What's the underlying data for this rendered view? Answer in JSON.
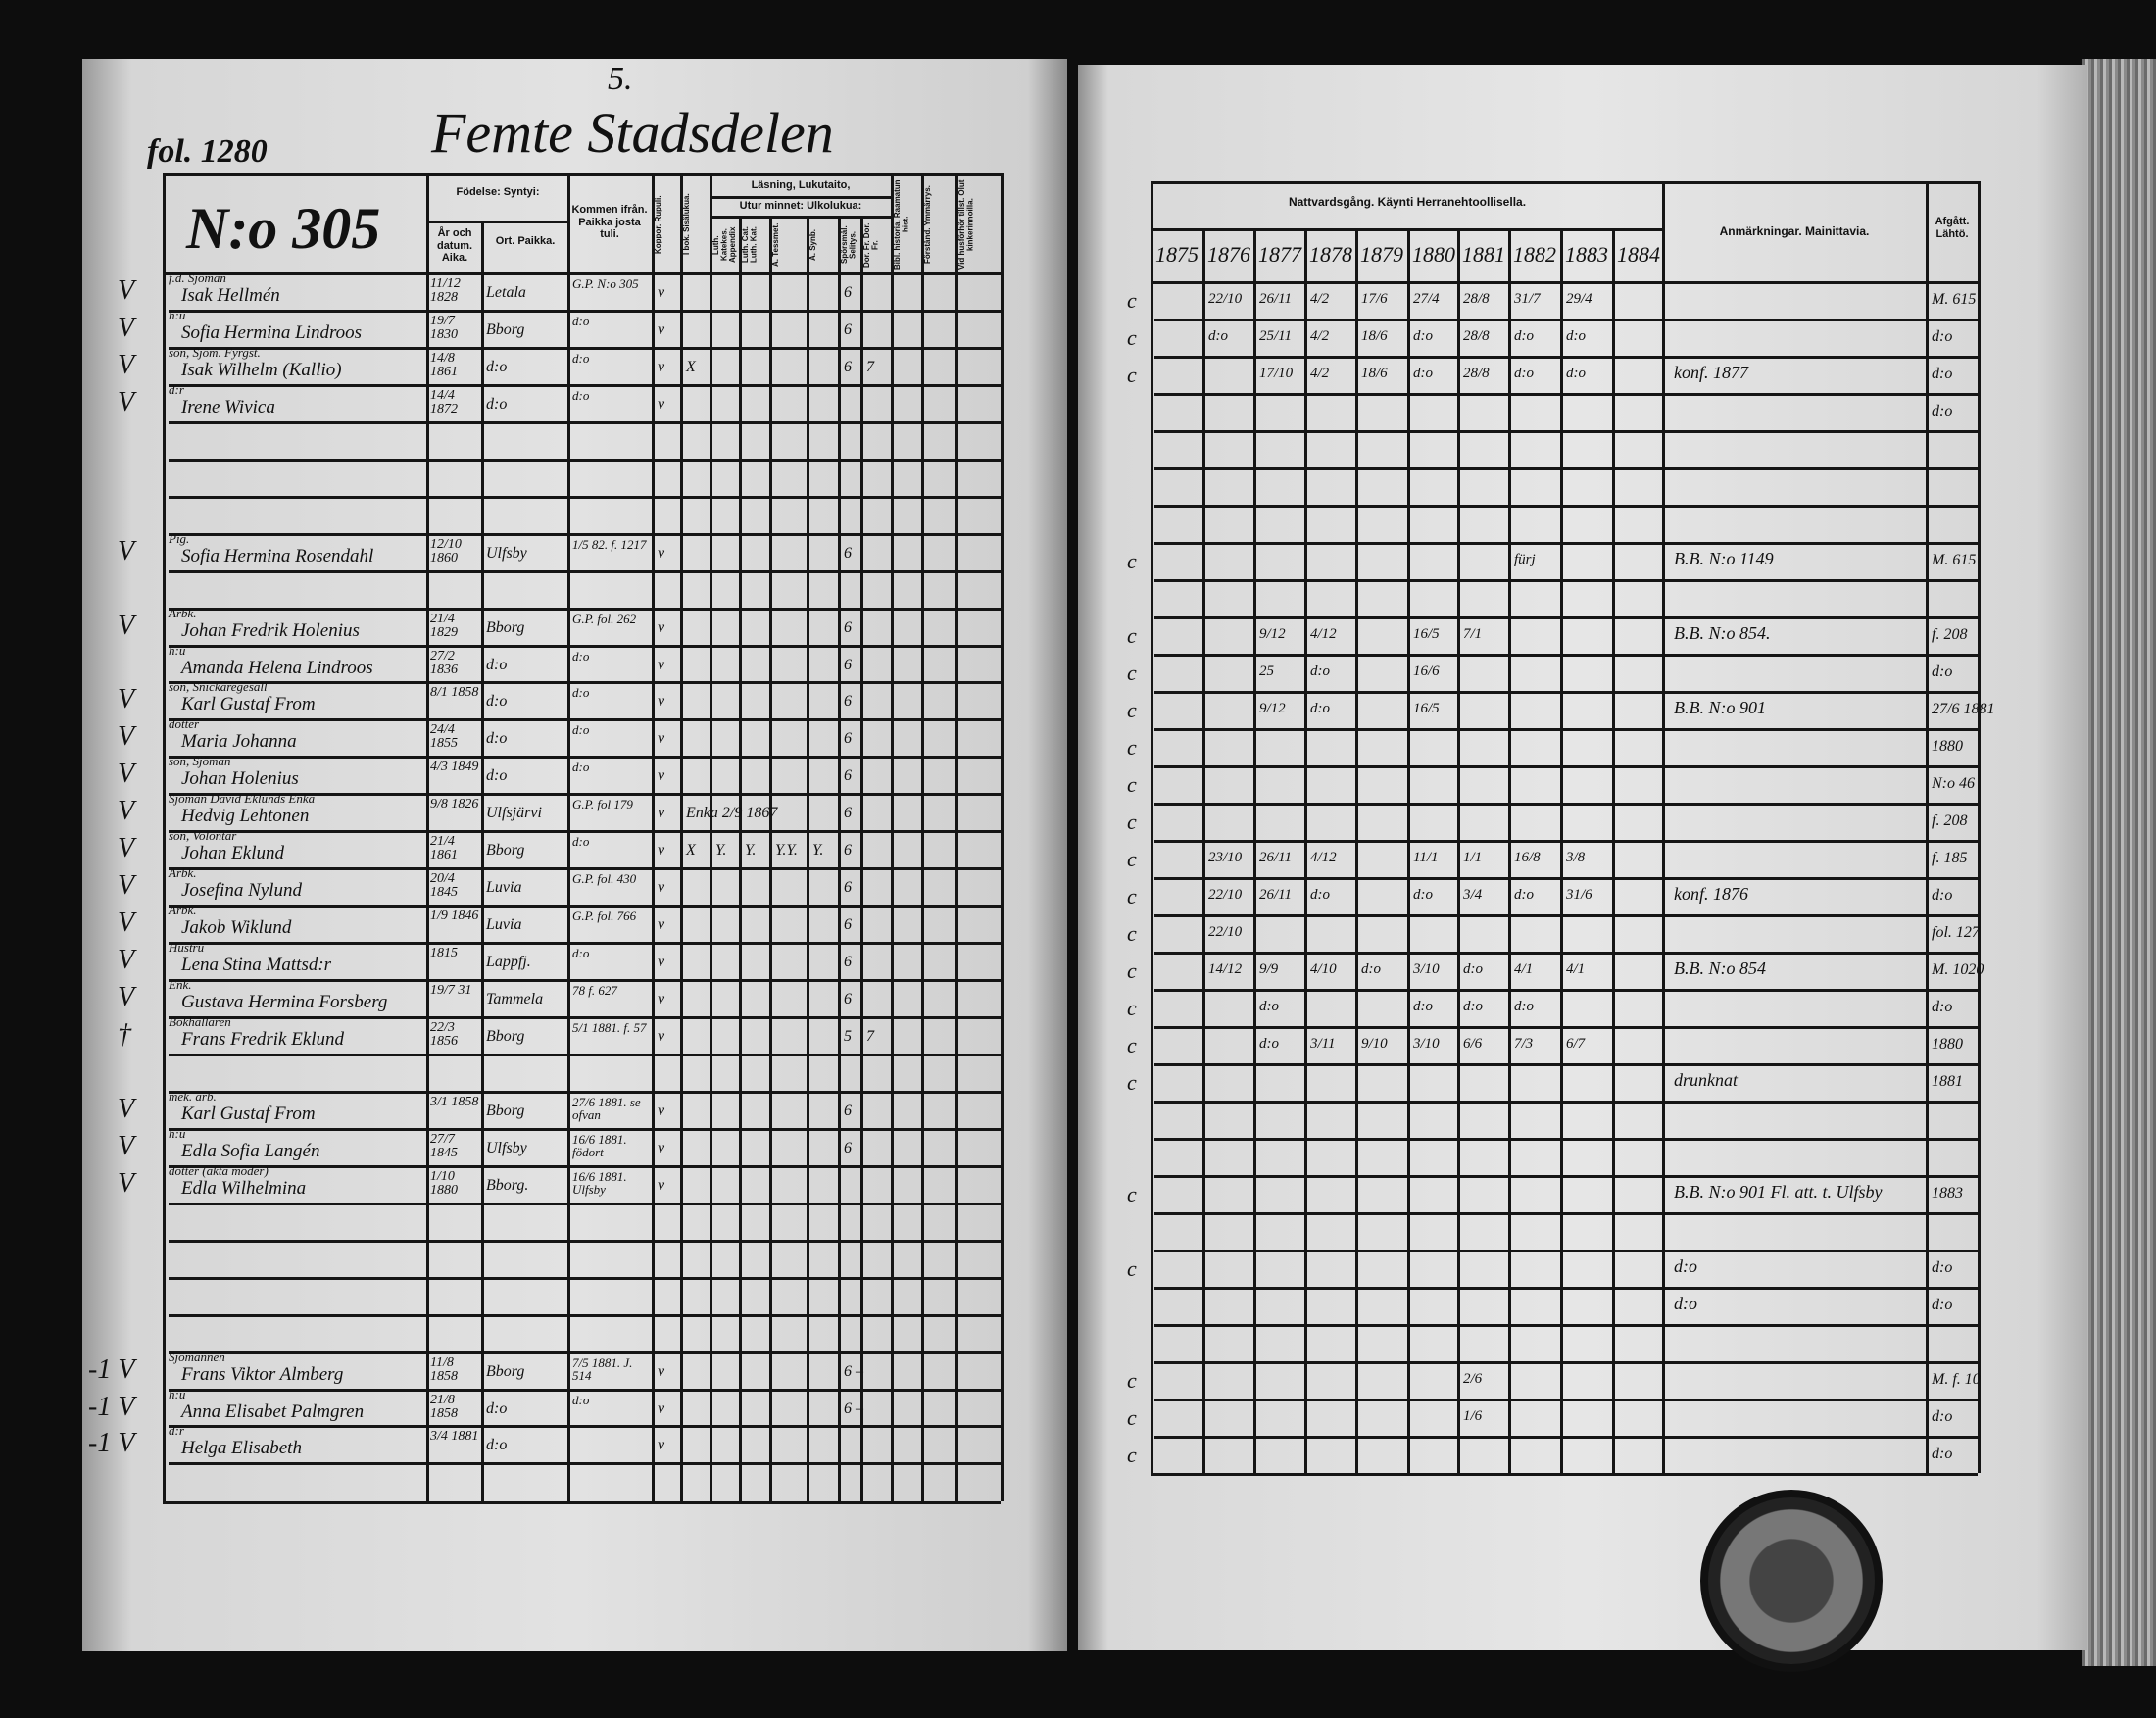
{
  "colors": {
    "ink": "#111111",
    "paper": "#e2e2e2",
    "background": "#0d0d0d"
  },
  "header": {
    "folio": "fol. 1280",
    "district": "Femte Stadsdelen",
    "district_number": "5.",
    "household_number": "N:o 305"
  },
  "left_columns": {
    "born": "Födelse: Syntyi:",
    "year_date": "År och datum. Aika.",
    "place": "Ort. Paikka.",
    "came_from": "Kommen ifrån. Paikka josta tuli.",
    "smallpox": "Koppor. Rupuli.",
    "reading": "Läsning, Lukutaito,",
    "from_book": "I bok. Sisälukua.",
    "by_heart": "Utur minnet: Ulkolukua:",
    "sub": [
      "Koppor. Rupuli.",
      "I bok. Sisälukua.",
      "Luth. Katekes. Appendix",
      "Luth. Cat. Luth. Kat.",
      "A. Tessmet.",
      "A. Synb.",
      "Spörsmål. Selitys.",
      "Dor. Fr. Dor. Fr.",
      "Bibl. historia. Raamatun hist.",
      "Förstånd. Ymmärrys.",
      "Vid husförhör tillst. Olut kinkerinnoilla."
    ]
  },
  "right_columns": {
    "communion": "Nattvardsgång. Käynti Herranehtoollisella.",
    "years": [
      "1875",
      "1876",
      "1877",
      "1878",
      "1879",
      "1880",
      "1881",
      "1882",
      "1883",
      "1884"
    ],
    "remarks": "Anmärkningar. Mainittavia.",
    "departed": "Afgått. Lähtö."
  },
  "persons": [
    {
      "row": 0,
      "mark": "V",
      "occupation": "f.d. Sjöman",
      "name": "Isak Hellmén",
      "date": "11/12 1828",
      "place": "Letala",
      "from": "G.P. N:o 305",
      "marks": [
        "v",
        "",
        "",
        "",
        "",
        "",
        "6"
      ]
    },
    {
      "row": 1,
      "mark": "V",
      "occupation": "h:u",
      "name": "Sofia Hermina Lindroos",
      "date": "19/7 1830",
      "place": "Bborg",
      "from": "d:o",
      "marks": [
        "v",
        "",
        "",
        "",
        "",
        "",
        "6"
      ]
    },
    {
      "row": 2,
      "mark": "V",
      "occupation": "son, Sjöm. Fyrgst.",
      "name": "Isak Wilhelm (Kallio)",
      "date": "14/8 1861",
      "place": "d:o",
      "from": "d:o",
      "marks": [
        "v",
        "X",
        "",
        "",
        "",
        "",
        "6",
        "7"
      ]
    },
    {
      "row": 3,
      "mark": "V",
      "occupation": "d:r",
      "name": "Irene Wivica",
      "date": "14/4 1872",
      "place": "d:o",
      "from": "d:o",
      "marks": [
        "v"
      ]
    },
    {
      "row": 7,
      "mark": "V",
      "occupation": "Pig.",
      "name": "Sofia Hermina Rosendahl",
      "date": "12/10 1860",
      "place": "Ulfsby",
      "from": "1/5 82. f. 1217",
      "marks": [
        "v",
        "",
        "",
        "",
        "",
        "",
        "6"
      ]
    },
    {
      "row": 9,
      "mark": "V",
      "occupation": "Arbk.",
      "name": "Johan Fredrik Holenius",
      "date": "21/4 1829",
      "place": "Bborg",
      "from": "G.P. fol. 262",
      "marks": [
        "v",
        "",
        "",
        "",
        "",
        "",
        "6"
      ]
    },
    {
      "row": 10,
      "mark": "",
      "occupation": "h:u",
      "name": "Amanda Helena Lindroos",
      "date": "27/2 1836",
      "place": "d:o",
      "from": "d:o",
      "marks": [
        "v",
        "",
        "",
        "",
        "",
        "",
        "6"
      ]
    },
    {
      "row": 11,
      "mark": "V",
      "occupation": "son, Snickaregesäll",
      "name": "Karl Gustaf From",
      "date": "8/1 1858",
      "place": "d:o",
      "from": "d:o",
      "marks": [
        "v",
        "",
        "",
        "",
        "",
        "",
        "6"
      ]
    },
    {
      "row": 12,
      "mark": "V",
      "occupation": "dotter",
      "name": "Maria Johanna",
      "date": "24/4 1855",
      "place": "d:o",
      "from": "d:o",
      "marks": [
        "v",
        "",
        "",
        "",
        "",
        "",
        "6"
      ]
    },
    {
      "row": 13,
      "mark": "V",
      "occupation": "son, Sjöman",
      "name": "Johan Holenius",
      "date": "4/3 1849",
      "place": "d:o",
      "from": "d:o",
      "marks": [
        "v",
        "",
        "",
        "",
        "",
        "",
        "6"
      ]
    },
    {
      "row": 14,
      "mark": "V",
      "occupation": "Sjöman David Eklunds Enka",
      "name": "Hedvig Lehtonen",
      "date": "9/8 1826",
      "place": "Ulfsjärvi",
      "from": "G.P. fol 179",
      "marks": [
        "v",
        "Enka 2/9 1867",
        "",
        "",
        "",
        "",
        "6"
      ]
    },
    {
      "row": 15,
      "mark": "V",
      "occupation": "son, Volontär",
      "name": "Johan Eklund",
      "date": "21/4 1861",
      "place": "Bborg",
      "from": "d:o",
      "marks": [
        "v",
        "X",
        "Y.",
        "Y.",
        "Y.Y.",
        "Y.",
        "6"
      ]
    },
    {
      "row": 16,
      "mark": "V",
      "occupation": "Arbk.",
      "name": "Josefina Nylund",
      "date": "20/4 1845",
      "place": "Luvia",
      "from": "G.P. fol. 430",
      "marks": [
        "v",
        "",
        "",
        "",
        "",
        "",
        "6"
      ]
    },
    {
      "row": 17,
      "mark": "V",
      "occupation": "Arbk.",
      "name": "Jakob Wiklund",
      "date": "1/9 1846",
      "place": "Luvia",
      "from": "G.P. fol. 766",
      "marks": [
        "v",
        "",
        "",
        "",
        "",
        "",
        "6"
      ]
    },
    {
      "row": 18,
      "mark": "V",
      "occupation": "Hustru",
      "name": "Lena Stina Mattsd:r",
      "date": "1815",
      "place": "Lappfj.",
      "from": "d:o",
      "marks": [
        "v",
        "",
        "",
        "",
        "",
        "",
        "6"
      ]
    },
    {
      "row": 19,
      "mark": "V",
      "occupation": "Enk.",
      "name": "Gustava Hermina Forsberg",
      "date": "19/7 31",
      "place": "Tammela",
      "from": "78 f. 627",
      "marks": [
        "v",
        "",
        "",
        "",
        "",
        "",
        "6"
      ]
    },
    {
      "row": 20,
      "mark": "†",
      "occupation": "Bokhållaren",
      "name": "Frans Fredrik Eklund",
      "date": "22/3 1856",
      "place": "Bborg",
      "from": "5/1 1881. f. 57",
      "marks": [
        "v",
        "",
        "",
        "",
        "",
        "",
        "5",
        "7"
      ]
    },
    {
      "row": 22,
      "mark": "V",
      "occupation": "mek. arb.",
      "name": "Karl Gustaf From",
      "date": "3/1 1858",
      "place": "Bborg",
      "from": "27/6 1881. se ofvan",
      "marks": [
        "v",
        "",
        "",
        "",
        "",
        "",
        "6"
      ]
    },
    {
      "row": 23,
      "mark": "V",
      "occupation": "h:u",
      "name": "Edla Sofia Langén",
      "date": "27/7 1845",
      "place": "Ulfsby",
      "from": "16/6 1881. födort",
      "marks": [
        "v",
        "",
        "",
        "",
        "",
        "",
        "6"
      ]
    },
    {
      "row": 24,
      "mark": "V",
      "occupation": "dotter (äkta moder)",
      "name": "Edla Wilhelmina",
      "date": "1/10 1880",
      "place": "Bborg.",
      "from": "16/6 1881. Ulfsby",
      "marks": [
        "v"
      ]
    },
    {
      "row": 29,
      "mark": "-1 V",
      "occupation": "Sjömannen",
      "name": "Frans Viktor Almberg",
      "date": "11/8 1858",
      "place": "Bborg",
      "from": "7/5 1881. J. 514",
      "marks": [
        "v",
        "",
        "",
        "",
        "",
        "",
        "6 –"
      ]
    },
    {
      "row": 30,
      "mark": "-1 V",
      "occupation": "h:u",
      "name": "Anna Elisabet Palmgren",
      "date": "21/8 1858",
      "place": "d:o",
      "from": "d:o",
      "marks": [
        "v",
        "",
        "",
        "",
        "",
        "",
        "6 –"
      ]
    },
    {
      "row": 31,
      "mark": "-1 V",
      "occupation": "d:r",
      "name": "Helga Elisabeth",
      "date": "3/4 1881",
      "place": "d:o",
      "from": "",
      "marks": [
        "v"
      ]
    }
  ],
  "communion_rows": [
    {
      "row": 0,
      "mark": "c",
      "years": [
        "",
        "22/10",
        "26/11",
        "4/2",
        "17/6",
        "27/4",
        "28/8",
        "31/7",
        "29/4",
        ""
      ],
      "remark": "",
      "departed": "M. 615"
    },
    {
      "row": 1,
      "mark": "c",
      "years": [
        "",
        "d:o",
        "25/11",
        "4/2",
        "18/6",
        "d:o",
        "28/8",
        "d:o",
        "d:o",
        ""
      ],
      "remark": "",
      "departed": "d:o"
    },
    {
      "row": 2,
      "mark": "c",
      "years": [
        "",
        "",
        "17/10",
        "4/2",
        "18/6",
        "d:o",
        "28/8",
        "d:o",
        "d:o",
        ""
      ],
      "remark": "konf. 1877",
      "departed": "d:o"
    },
    {
      "row": 3,
      "mark": "",
      "years": [
        "",
        "",
        "",
        "",
        "",
        "",
        "",
        "",
        "",
        ""
      ],
      "remark": "",
      "departed": "d:o"
    },
    {
      "row": 7,
      "mark": "c",
      "years": [
        "",
        "",
        "",
        "",
        "",
        "",
        "",
        "fürj",
        "",
        ""
      ],
      "remark": "B.B. N:o 1149",
      "departed": "M. 615"
    },
    {
      "row": 9,
      "mark": "c",
      "years": [
        "",
        "",
        "9/12",
        "4/12",
        "",
        "16/5",
        "7/1",
        "",
        "",
        ""
      ],
      "remark": "B.B. N:o 854.",
      "departed": "f. 208"
    },
    {
      "row": 10,
      "mark": "c",
      "years": [
        "",
        "",
        "25",
        "d:o",
        "",
        "16/6",
        "",
        "",
        "",
        ""
      ],
      "remark": "",
      "departed": "d:o"
    },
    {
      "row": 11,
      "mark": "c",
      "years": [
        "",
        "",
        "9/12",
        "d:o",
        "",
        "16/5",
        "",
        "",
        "",
        ""
      ],
      "remark": "B.B. N:o 901",
      "departed": "27/6 1881"
    },
    {
      "row": 12,
      "mark": "c",
      "years": [
        "",
        "",
        "",
        "",
        "",
        "",
        "",
        "",
        "",
        ""
      ],
      "remark": "",
      "departed": "1880"
    },
    {
      "row": 13,
      "mark": "c",
      "years": [
        "",
        "",
        "",
        "",
        "",
        "",
        "",
        "",
        "",
        ""
      ],
      "remark": "",
      "departed": "N:o 46"
    },
    {
      "row": 14,
      "mark": "c",
      "years": [
        "",
        "",
        "",
        "",
        "",
        "",
        "",
        "",
        "",
        ""
      ],
      "remark": "",
      "departed": "f. 208"
    },
    {
      "row": 15,
      "mark": "c",
      "years": [
        "",
        "23/10",
        "26/11",
        "4/12",
        "",
        "11/1",
        "1/1",
        "16/8",
        "3/8",
        ""
      ],
      "remark": "",
      "departed": "f. 185"
    },
    {
      "row": 16,
      "mark": "c",
      "years": [
        "",
        "22/10",
        "26/11",
        "d:o",
        "",
        "d:o",
        "3/4",
        "d:o",
        "31/6",
        ""
      ],
      "remark": "konf. 1876",
      "departed": "d:o"
    },
    {
      "row": 17,
      "mark": "c",
      "years": [
        "",
        "22/10",
        "",
        "",
        "",
        "",
        "",
        "",
        "",
        ""
      ],
      "remark": "",
      "departed": "fol. 127"
    },
    {
      "row": 18,
      "mark": "c",
      "years": [
        "",
        "14/12",
        "9/9",
        "4/10",
        "d:o",
        "3/10",
        "d:o",
        "4/1",
        "4/1",
        ""
      ],
      "remark": "B.B. N:o 854",
      "departed": "M. 1020"
    },
    {
      "row": 19,
      "mark": "c",
      "years": [
        "",
        "",
        "d:o",
        "",
        "",
        "d:o",
        "d:o",
        "d:o",
        "",
        ""
      ],
      "remark": "",
      "departed": "d:o"
    },
    {
      "row": 20,
      "mark": "c",
      "years": [
        "",
        "",
        "d:o",
        "3/11",
        "9/10",
        "3/10",
        "6/6",
        "7/3",
        "6/7",
        ""
      ],
      "remark": "",
      "departed": "1880"
    },
    {
      "row": 21,
      "mark": "c",
      "years": [
        "",
        "",
        "",
        "",
        "",
        "",
        "",
        "",
        "",
        ""
      ],
      "remark": "drunknat",
      "departed": "1881"
    },
    {
      "row": 24,
      "mark": "c",
      "years": [
        "",
        "",
        "",
        "",
        "",
        "",
        "",
        "",
        "",
        ""
      ],
      "remark": "B.B. N:o 901 Fl. att. t. Ulfsby",
      "departed": "1883"
    },
    {
      "row": 26,
      "mark": "c",
      "years": [
        "",
        "",
        "",
        "",
        "",
        "",
        "",
        "",
        "",
        ""
      ],
      "remark": "d:o",
      "departed": "d:o"
    },
    {
      "row": 27,
      "mark": "",
      "years": [
        "",
        "",
        "",
        "",
        "",
        "",
        "",
        "",
        "",
        ""
      ],
      "remark": "d:o",
      "departed": "d:o"
    },
    {
      "row": 29,
      "mark": "c",
      "years": [
        "",
        "",
        "",
        "",
        "",
        "",
        "2/6",
        "",
        "",
        ""
      ],
      "remark": "",
      "departed": "M. f. 10"
    },
    {
      "row": 30,
      "mark": "c",
      "years": [
        "",
        "",
        "",
        "",
        "",
        "",
        "1/6",
        "",
        "",
        ""
      ],
      "remark": "",
      "departed": "d:o"
    },
    {
      "row": 31,
      "mark": "c",
      "years": [
        "",
        "",
        "",
        "",
        "",
        "",
        "",
        "",
        "",
        ""
      ],
      "remark": "",
      "departed": "d:o"
    }
  ]
}
